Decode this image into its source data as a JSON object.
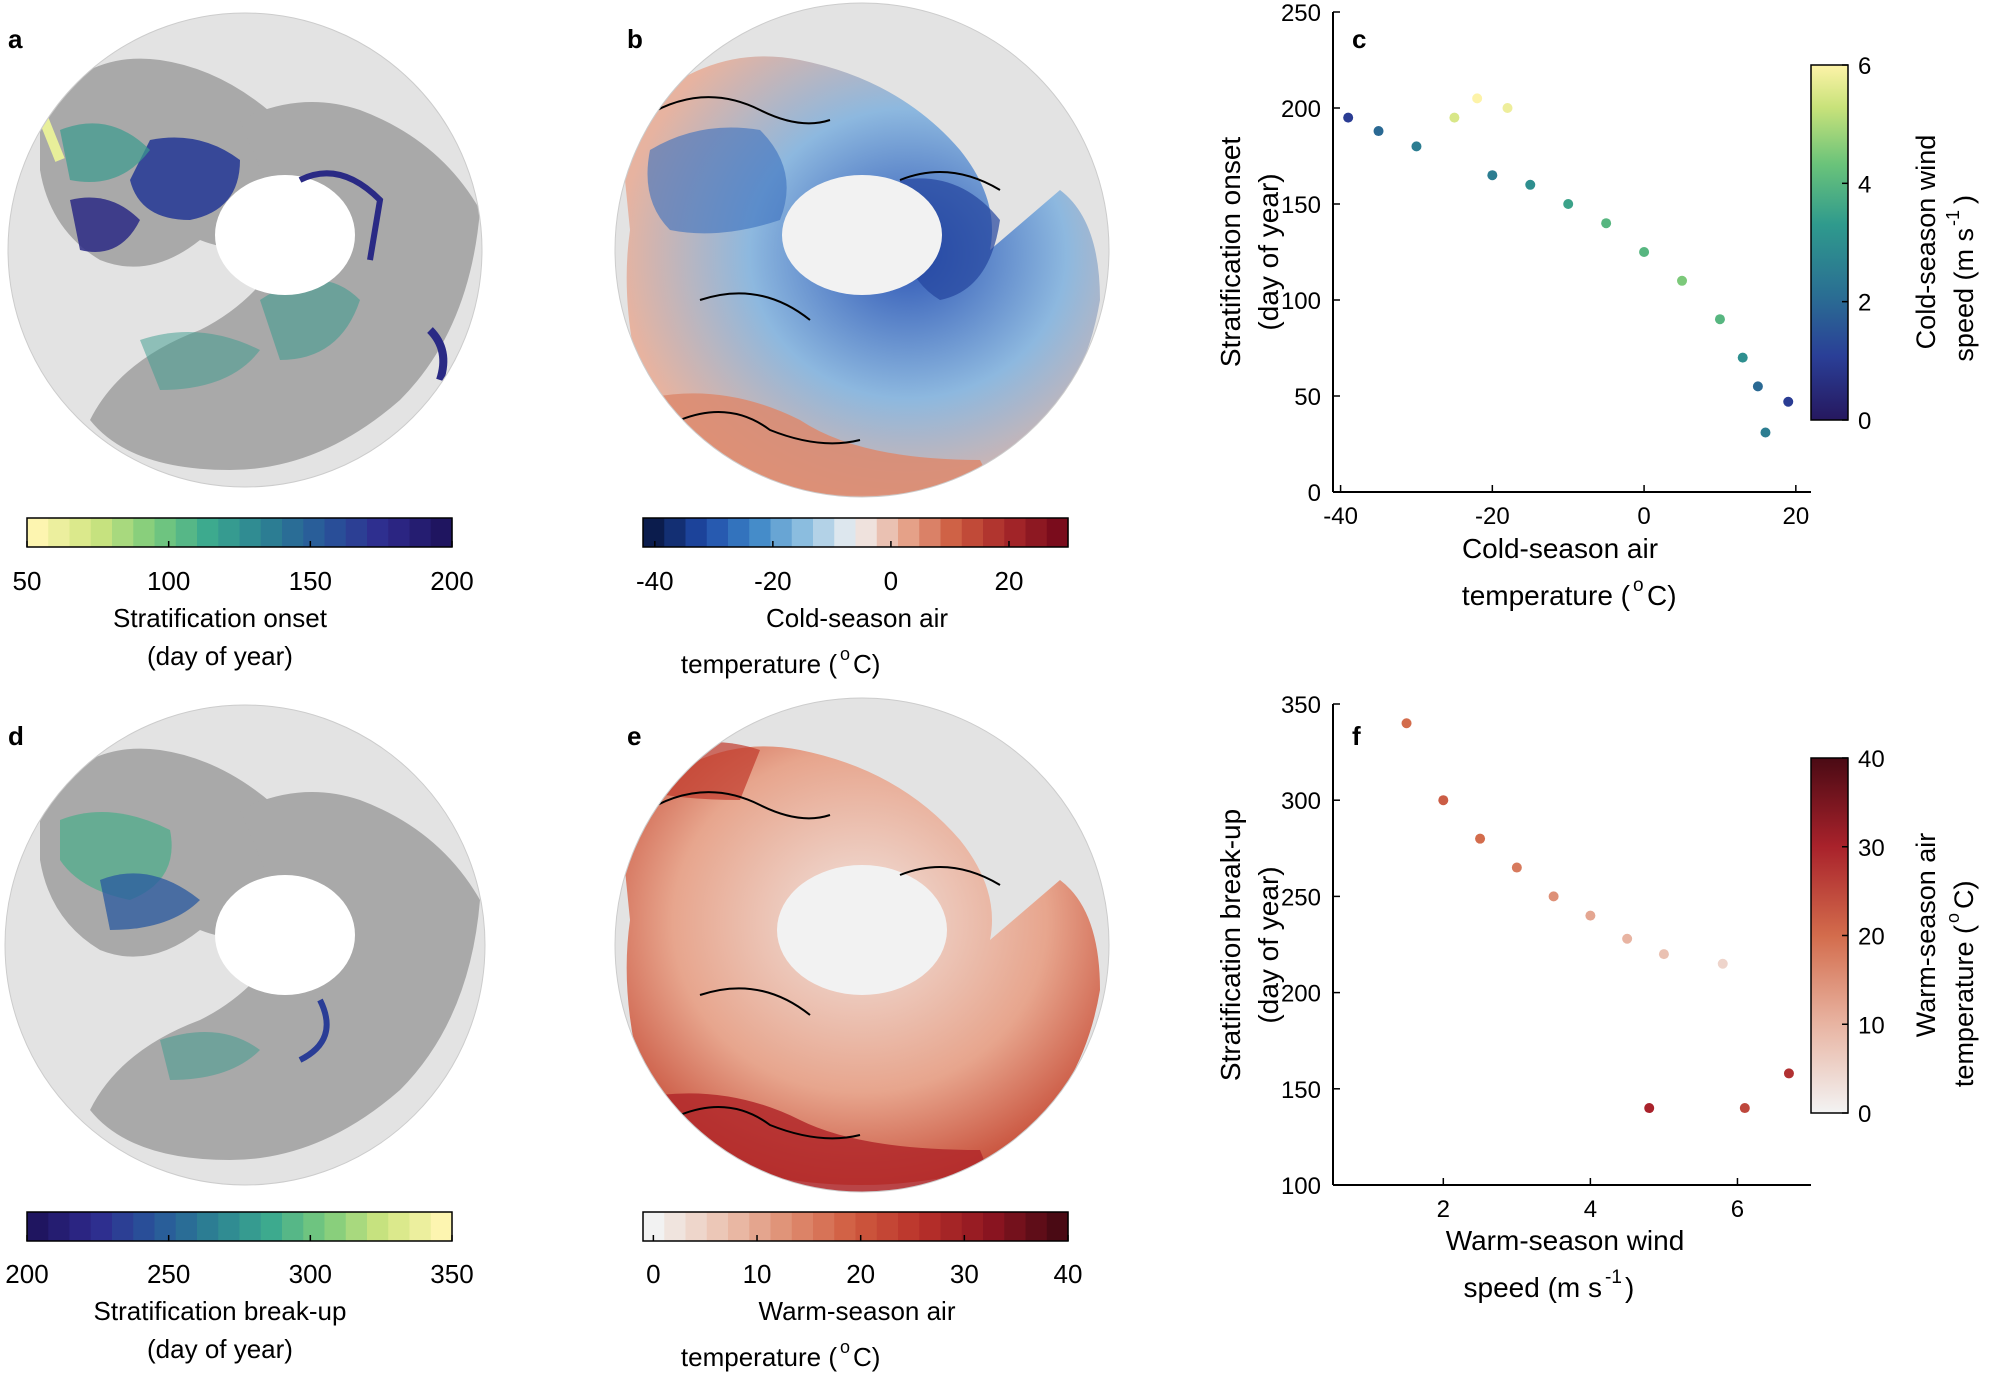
{
  "panels": {
    "a": {
      "label": "a",
      "colorbar": {
        "ticks": [
          "50",
          "100",
          "150",
          "200"
        ],
        "range": [
          50,
          200
        ],
        "colors": [
          "#fdf5b0",
          "#cfe57f",
          "#7ccb7c",
          "#3aa88f",
          "#2c7f93",
          "#28559a",
          "#2f2b8e",
          "#1f1560"
        ],
        "title_line1": "Stratification onset",
        "title_line2": "(day of year)"
      }
    },
    "b": {
      "label": "b",
      "colorbar": {
        "ticks": [
          "-40",
          "-20",
          "0",
          "20"
        ],
        "range": [
          -42,
          30
        ],
        "colors": [
          "#0b1c4d",
          "#1f4aa8",
          "#3c86c6",
          "#8fc0e0",
          "#f2f2f2",
          "#e6a58c",
          "#cc5a3e",
          "#a8282a",
          "#7a0c1c"
        ],
        "title_line1": "Cold-season air",
        "title_line2": "temperature (",
        "title_sup": "o",
        "title_end": "C)"
      }
    },
    "c": {
      "label": "c",
      "xlabel_line1": "Cold-season air",
      "xlabel_line2": "temperature (",
      "xlabel_sup": "o",
      "xlabel_end": "C)",
      "ylabel_line1": "Stratification onset",
      "ylabel_line2": "(day of year)",
      "colorbar_label_line1": "Cold-season wind",
      "colorbar_label_line2": "speed (m s",
      "colorbar_label_sup": "-1",
      "colorbar_label_end": ")",
      "colorbar_ticks": [
        "0",
        "2",
        "4",
        "6"
      ],
      "xticks": [
        "-40",
        "-20",
        "0",
        "20"
      ],
      "yticks": [
        "0",
        "50",
        "100",
        "150",
        "200",
        "250"
      ]
    },
    "d": {
      "label": "d",
      "colorbar": {
        "ticks": [
          "200",
          "250",
          "300",
          "350"
        ],
        "range": [
          200,
          350
        ],
        "colors": [
          "#1f1560",
          "#2f2b8e",
          "#28559a",
          "#2c7f93",
          "#3aa88f",
          "#7ccb7c",
          "#cfe57f",
          "#fdf5b0"
        ],
        "title_line1": "Stratification break-up",
        "title_line2": "(day of year)"
      }
    },
    "e": {
      "label": "e",
      "colorbar": {
        "ticks": [
          "0",
          "10",
          "20",
          "30",
          "40"
        ],
        "range": [
          -1,
          40
        ],
        "colors": [
          "#f2f2f2",
          "#ecc5b4",
          "#df8e72",
          "#cf5a3e",
          "#b8302a",
          "#8c1521",
          "#4a0a14"
        ],
        "title_line1": "Warm-season air",
        "title_line2": "temperature (",
        "title_sup": "o",
        "title_end": "C)"
      }
    },
    "f": {
      "label": "f",
      "xlabel_line1": "Warm-season wind",
      "xlabel_line2": "speed (m s",
      "xlabel_sup": "-1",
      "xlabel_end": ")",
      "ylabel_line1": "Stratification break-up",
      "ylabel_line2": "(day of year)",
      "colorbar_label_line1": "Warm-season air",
      "colorbar_label_line2": "temperature (",
      "colorbar_label_sup": "o",
      "colorbar_label_end": "C)",
      "colorbar_ticks": [
        "0",
        "10",
        "20",
        "30",
        "40"
      ],
      "xticks": [
        "2",
        "4",
        "6"
      ],
      "yticks": [
        "100",
        "150",
        "200",
        "250",
        "300",
        "350"
      ]
    }
  },
  "chart_data": [
    {
      "panel": "c",
      "type": "scatter",
      "xlabel": "Cold-season air temperature (oC)",
      "ylabel": "Stratification onset (day of year)",
      "xlim": [
        -41,
        22
      ],
      "ylim": [
        0,
        250
      ],
      "colorbar": {
        "label": "Cold-season wind speed (m s-1)",
        "range": [
          0,
          6
        ]
      },
      "trend_points": [
        {
          "x": -39,
          "y": 195,
          "c": 1.0
        },
        {
          "x": -35,
          "y": 188,
          "c": 2.0
        },
        {
          "x": -30,
          "y": 180,
          "c": 2.5
        },
        {
          "x": -25,
          "y": 195,
          "c": 5.5
        },
        {
          "x": -22,
          "y": 205,
          "c": 6.0
        },
        {
          "x": -18,
          "y": 200,
          "c": 5.8
        },
        {
          "x": -20,
          "y": 165,
          "c": 2.5
        },
        {
          "x": -15,
          "y": 160,
          "c": 3.0
        },
        {
          "x": -10,
          "y": 150,
          "c": 3.5
        },
        {
          "x": -5,
          "y": 140,
          "c": 4.0
        },
        {
          "x": 0,
          "y": 125,
          "c": 4.0
        },
        {
          "x": 5,
          "y": 110,
          "c": 4.5
        },
        {
          "x": 10,
          "y": 90,
          "c": 4.0
        },
        {
          "x": 13,
          "y": 70,
          "c": 3.0
        },
        {
          "x": 15,
          "y": 55,
          "c": 2.0
        },
        {
          "x": 19,
          "y": 47,
          "c": 1.0
        },
        {
          "x": 16,
          "y": 31,
          "c": 2.5
        }
      ]
    },
    {
      "panel": "f",
      "type": "scatter",
      "xlabel": "Warm-season wind speed (m s-1)",
      "ylabel": "Stratification break-up (day of year)",
      "xlim": [
        0.5,
        7
      ],
      "ylim": [
        100,
        350
      ],
      "colorbar": {
        "label": "Warm-season air temperature (oC)",
        "range": [
          0,
          40
        ]
      },
      "trend_points": [
        {
          "x": 1.5,
          "y": 340,
          "c": 20
        },
        {
          "x": 2.0,
          "y": 300,
          "c": 22
        },
        {
          "x": 2.5,
          "y": 280,
          "c": 20
        },
        {
          "x": 3.0,
          "y": 265,
          "c": 18
        },
        {
          "x": 3.5,
          "y": 250,
          "c": 15
        },
        {
          "x": 4.0,
          "y": 240,
          "c": 12
        },
        {
          "x": 4.5,
          "y": 228,
          "c": 10
        },
        {
          "x": 5.0,
          "y": 220,
          "c": 8
        },
        {
          "x": 5.8,
          "y": 215,
          "c": 5
        },
        {
          "x": 4.8,
          "y": 140,
          "c": 30
        },
        {
          "x": 6.1,
          "y": 140,
          "c": 25
        },
        {
          "x": 6.7,
          "y": 158,
          "c": 28
        }
      ]
    }
  ]
}
